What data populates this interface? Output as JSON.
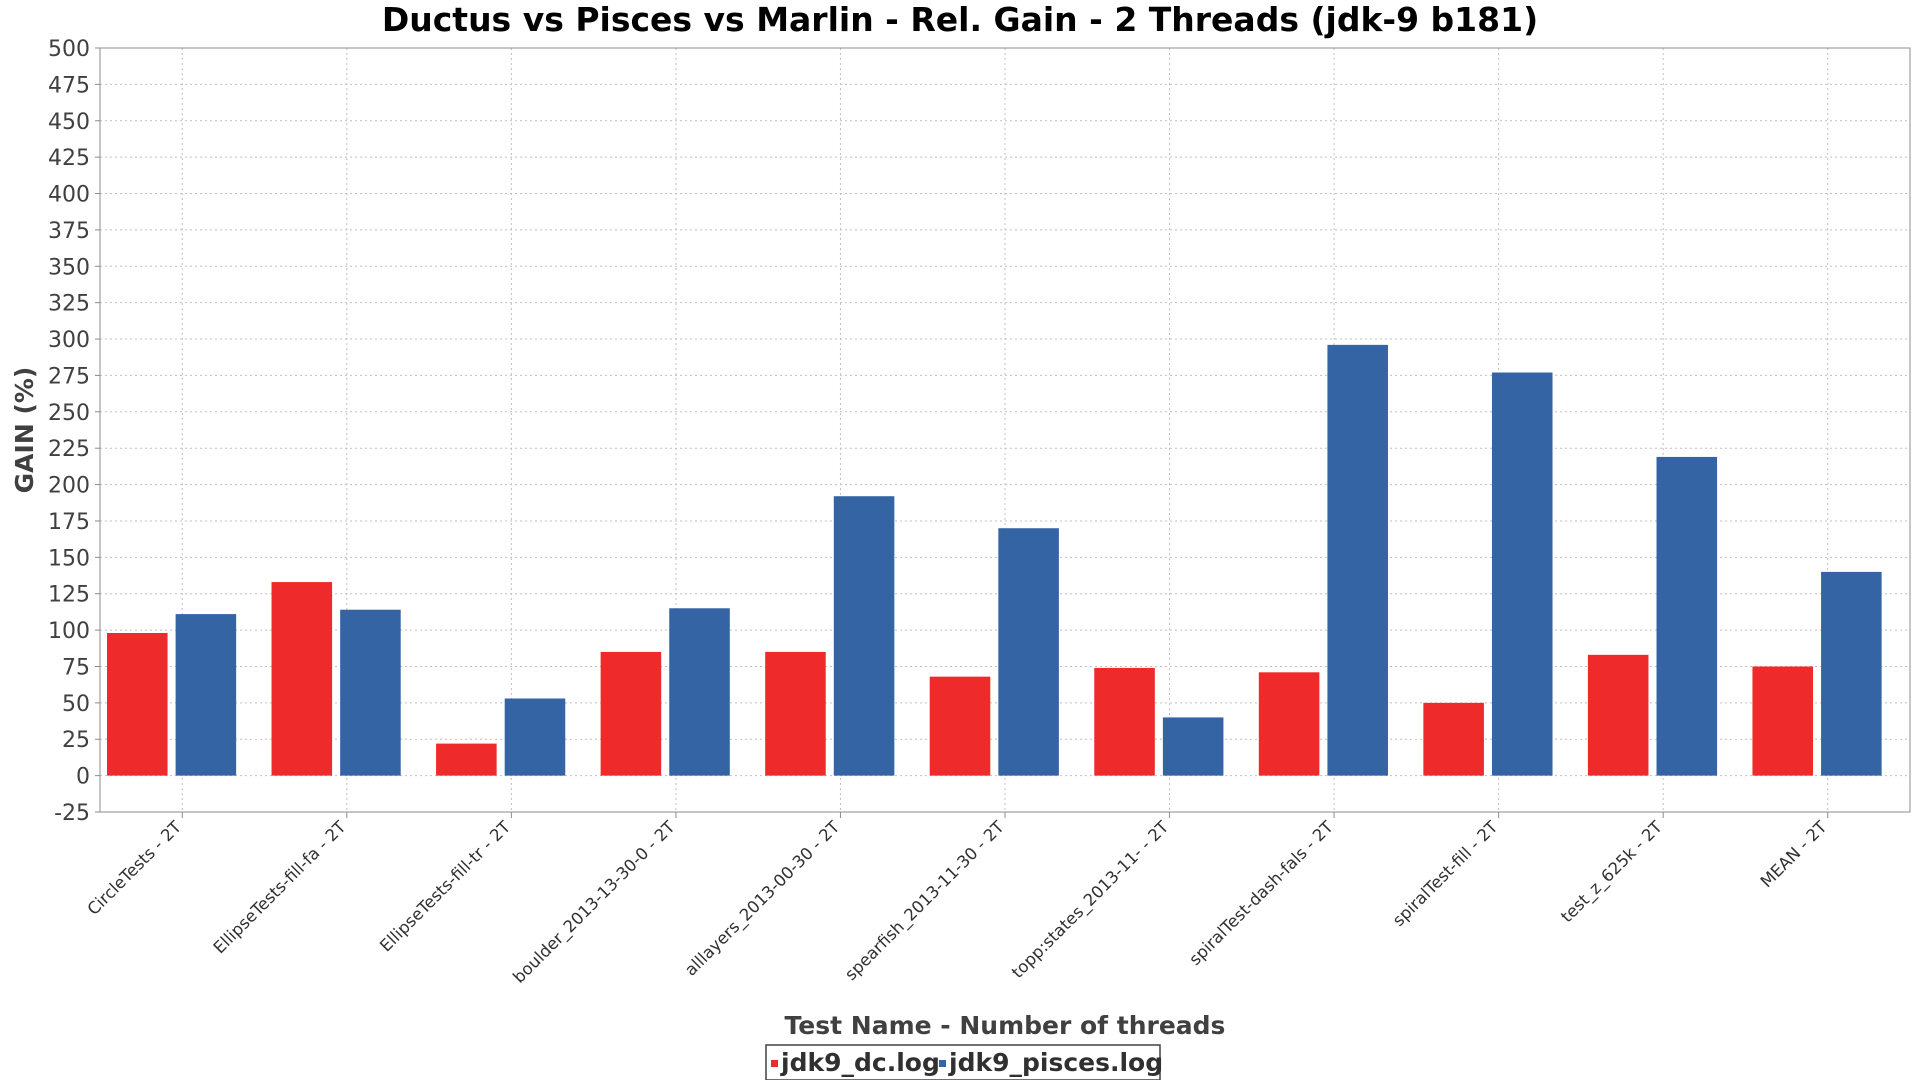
{
  "chart_data": {
    "type": "bar",
    "title": "Ductus vs Pisces vs Marlin - Rel. Gain - 2 Threads (jdk-9 b181)",
    "xlabel": "Test Name - Number of threads",
    "ylabel": "GAIN (%)",
    "ylim": [
      -25,
      500
    ],
    "ytick_step": 25,
    "grid": true,
    "legend_position": "bottom",
    "categories": [
      "CircleTests - 2T",
      "EllipseTests-fill-fa - 2T",
      "EllipseTests-fill-tr - 2T",
      "boulder_2013-13-30-0 - 2T",
      "alllayers_2013-00-30 - 2T",
      "spearfish_2013-11-30 - 2T",
      "topp:states_2013-11- - 2T",
      "spiralTest-dash-fals - 2T",
      "spiralTest-fill - 2T",
      "test_z_625k - 2T",
      "MEAN - 2T"
    ],
    "series": [
      {
        "name": "jdk9_dc.log",
        "color": "#ee2a2a",
        "values": [
          98,
          133,
          22,
          85,
          85,
          68,
          74,
          71,
          50,
          83,
          75
        ]
      },
      {
        "name": "jdk9_pisces.log",
        "color": "#3464a4",
        "values": [
          111,
          114,
          53,
          115,
          192,
          170,
          40,
          296,
          277,
          219,
          140
        ]
      }
    ]
  }
}
